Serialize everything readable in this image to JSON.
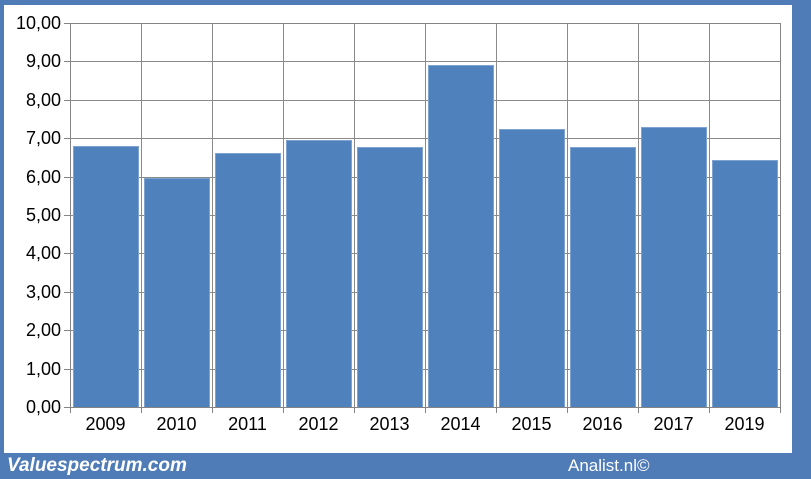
{
  "chart_data": {
    "type": "bar",
    "categories": [
      "2009",
      "2010",
      "2011",
      "2012",
      "2013",
      "2014",
      "2015",
      "2016",
      "2017",
      "2019"
    ],
    "values": [
      6.8,
      5.97,
      6.62,
      6.95,
      6.78,
      8.9,
      7.23,
      6.76,
      7.3,
      6.43
    ],
    "title": "",
    "xlabel": "",
    "ylabel": "",
    "ylim": [
      0,
      10
    ],
    "ytick_step": 1,
    "ytick_labels": [
      "0,00",
      "1,00",
      "2,00",
      "3,00",
      "4,00",
      "5,00",
      "6,00",
      "7,00",
      "8,00",
      "9,00",
      "10,00"
    ],
    "grid": "horizontal-and-vertical",
    "legend": "none",
    "bar_color": "#4f81bd",
    "bar_border_color": "#7fa3d0",
    "gridline_color": "#8a8a8a",
    "axis_color": "#848484",
    "axis_text_color": "#000000"
  },
  "footer": {
    "left_watermark": "Valuespectrum.com",
    "right_watermark": "Analist.nl©",
    "bar_color": "#4f7cb7"
  },
  "frame_color": "#4f7cb7"
}
